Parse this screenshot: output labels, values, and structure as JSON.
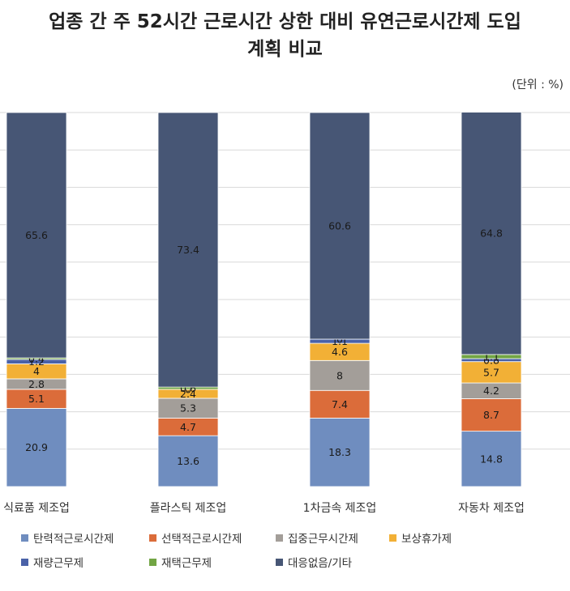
{
  "title": {
    "line1": "업종 간 주 52시간 근로시간 상한 대비 유연근로시간제 도입",
    "line2": "계획 비교"
  },
  "unit_label": "(단위 : %)",
  "chart_data": {
    "type": "bar",
    "stacked": true,
    "categories": [
      "식료품 제조업",
      "플라스틱 제조업",
      "1차금속 제조업",
      "자동차 제조업"
    ],
    "series": [
      {
        "name": "탄력적근로시간제",
        "color": "#6f8dbf",
        "values": [
          20.9,
          13.6,
          18.3,
          14.8
        ]
      },
      {
        "name": "선택적근로시간제",
        "color": "#db6c3a",
        "values": [
          5.1,
          4.7,
          7.4,
          8.7
        ]
      },
      {
        "name": "집중근무시간제",
        "color": "#a39e99",
        "values": [
          2.8,
          5.3,
          8,
          4.2
        ]
      },
      {
        "name": "보상휴가제",
        "color": "#f2b036",
        "values": [
          4,
          2.4,
          4.6,
          5.7
        ]
      },
      {
        "name": "재량근무제",
        "color": "#4a62a8",
        "values": [
          1.2,
          0,
          1.1,
          0.8
        ]
      },
      {
        "name": "재택근무제",
        "color": "#72a544",
        "values": [
          0.4,
          0.6,
          0,
          1.1
        ]
      },
      {
        "name": "대응없음/기타",
        "color": "#475675",
        "values": [
          65.6,
          73.4,
          60.6,
          64.8
        ]
      }
    ],
    "ylim": [
      0,
      100
    ],
    "grid": true,
    "legend_position": "bottom"
  }
}
